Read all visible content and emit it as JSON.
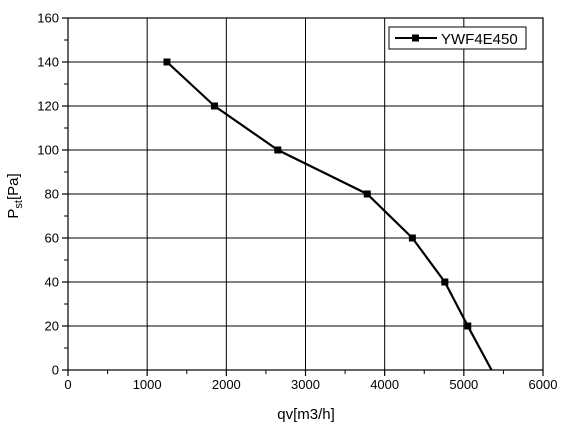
{
  "chart_data": {
    "type": "line",
    "title": "",
    "xlabel": "qv[m3/h]",
    "ylabel_main": "P",
    "ylabel_sub": "st",
    "ylabel_suffix": "[Pa]",
    "xlim": [
      0,
      6000
    ],
    "ylim": [
      0,
      160
    ],
    "xticks": [
      0,
      1000,
      2000,
      3000,
      4000,
      5000,
      6000
    ],
    "yticks": [
      0,
      20,
      40,
      60,
      80,
      100,
      120,
      140,
      160
    ],
    "grid": true,
    "legend_position": "top-right",
    "series": [
      {
        "name": "YWF4E450",
        "color": "#000000",
        "marker": "square",
        "x": [
          1250,
          1850,
          2650,
          3780,
          4350,
          4760,
          5050,
          5350
        ],
        "y": [
          140,
          120,
          100,
          80,
          60,
          40,
          20,
          0
        ],
        "markers": [
          true,
          true,
          true,
          true,
          true,
          true,
          true,
          false
        ]
      }
    ]
  }
}
